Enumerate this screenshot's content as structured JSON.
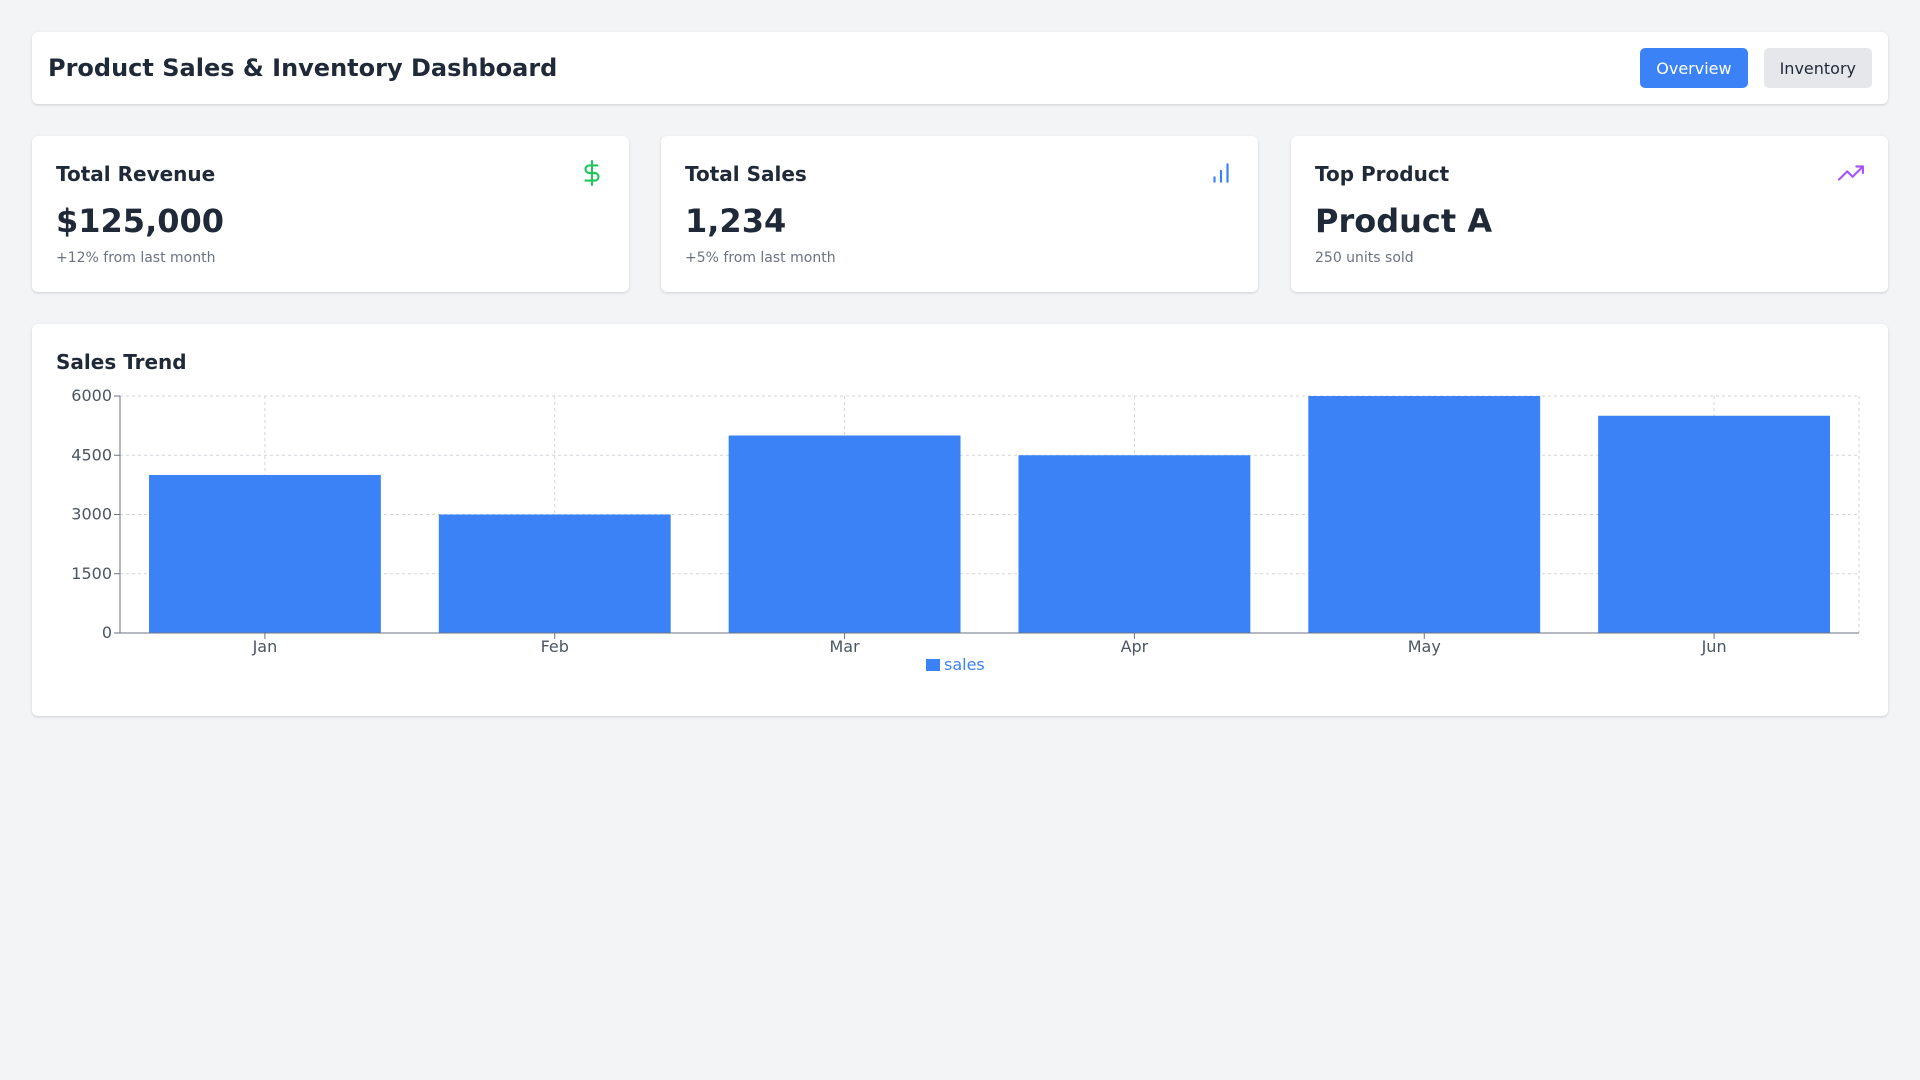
{
  "header": {
    "title": "Product Sales & Inventory Dashboard",
    "tabs": [
      {
        "label": "Overview",
        "active": true
      },
      {
        "label": "Inventory",
        "active": false
      }
    ]
  },
  "cards": [
    {
      "title": "Total Revenue",
      "value": "$125,000",
      "sub": "+12% from last month",
      "icon": "dollar-icon",
      "icon_color": "#22c55e"
    },
    {
      "title": "Total Sales",
      "value": "1,234",
      "sub": "+5% from last month",
      "icon": "bar-chart-icon",
      "icon_color": "#3b82f6"
    },
    {
      "title": "Top Product",
      "value": "Product A",
      "sub": "250 units sold",
      "icon": "trending-up-icon",
      "icon_color": "#a855f7"
    }
  ],
  "colors": {
    "accent": "#3b82f6",
    "background": "#f3f4f6"
  },
  "chart_title": "Sales Trend",
  "chart_data": {
    "type": "bar",
    "categories": [
      "Jan",
      "Feb",
      "Mar",
      "Apr",
      "May",
      "Jun"
    ],
    "series": [
      {
        "name": "sales",
        "values": [
          4000,
          3000,
          5000,
          4500,
          6000,
          5500
        ],
        "color": "#3b82f6"
      }
    ],
    "yticks": [
      0,
      1500,
      3000,
      4500,
      6000
    ],
    "ylim": [
      0,
      6000
    ],
    "grid": true,
    "legend": "bottom-center"
  }
}
